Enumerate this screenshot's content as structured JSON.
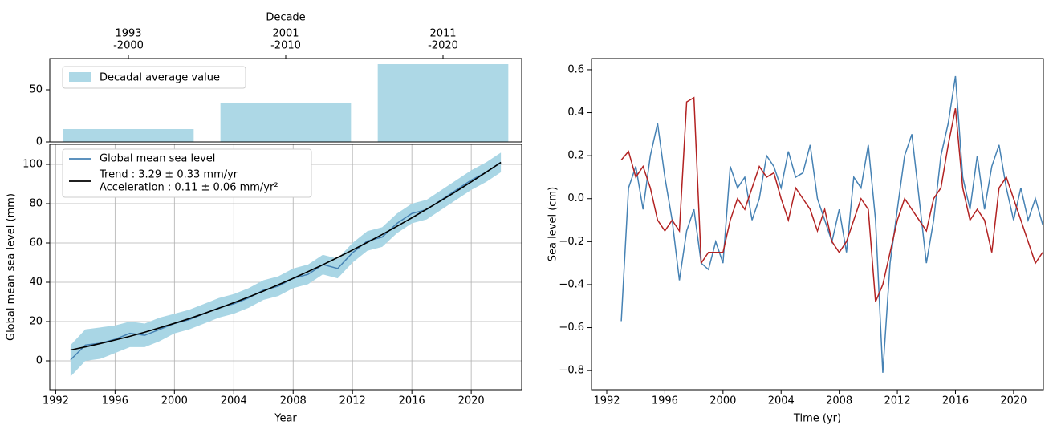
{
  "chart_data": [
    {
      "type": "bar",
      "top_axis_title": "Decade",
      "categories": [
        "1993\n-2000",
        "2001\n-2010",
        "2011\n-2020"
      ],
      "series": [
        {
          "name": "Decadal average value",
          "color": "#add8e6",
          "values": [
            12.3,
            37.7,
            74.6
          ]
        }
      ],
      "ylim": [
        0,
        80
      ],
      "yticks": [
        0,
        50
      ],
      "legend": "upper left"
    },
    {
      "type": "line",
      "xlabel": "Year",
      "ylabel": "Global mean sea level (mm)",
      "grid": true,
      "legend": "upper left",
      "xlim": [
        1991.6,
        2023.4
      ],
      "xticks": [
        1992,
        1996,
        2000,
        2004,
        2008,
        2012,
        2016,
        2020
      ],
      "ylim": [
        -14.7,
        110.2
      ],
      "yticks": [
        0,
        20,
        40,
        60,
        80,
        100
      ],
      "x": [
        1993,
        1994,
        1995,
        1996,
        1997,
        1998,
        1999,
        2000,
        2001,
        2002,
        2003,
        2004,
        2005,
        2006,
        2007,
        2008,
        2009,
        2010,
        2011,
        2012,
        2013,
        2014,
        2015,
        2016,
        2017,
        2018,
        2019,
        2020,
        2021,
        2022
      ],
      "series": [
        {
          "name": "Global mean sea level",
          "color": "#4682b4",
          "values": [
            0.5,
            8,
            9,
            11,
            14,
            13,
            16,
            19,
            21,
            24,
            27,
            29,
            32,
            36,
            38,
            42,
            44,
            49,
            47,
            55,
            61,
            63,
            70,
            75,
            77,
            82,
            87,
            92,
            96,
            101
          ],
          "band": {
            "color": "#a9d6e5",
            "lower": [
              -8,
              0,
              1,
              4,
              7,
              7,
              10,
              14,
              16,
              19,
              22,
              24,
              27,
              31,
              33,
              37,
              39,
              44,
              42,
              50,
              56,
              58,
              65,
              70,
              72,
              77,
              82,
              87,
              91,
              96
            ],
            "upper": [
              8,
              16,
              17,
              18,
              20,
              19,
              22,
              24,
              26,
              29,
              32,
              34,
              37,
              41,
              43,
              47,
              49,
              54,
              52,
              60,
              66,
              68,
              75,
              80,
              82,
              87,
              92,
              97,
              101,
              106
            ]
          }
        },
        {
          "name": "Trend : 3.29 ± 0.33 mm/yr",
          "name_line2": "Acceleration : 0.11 ± 0.06 mm/yr²",
          "color": "#000000",
          "values": [
            5.5,
            7.1,
            8.8,
            10.6,
            12.5,
            14.6,
            16.8,
            19.1,
            21.5,
            24.1,
            26.8,
            29.6,
            32.5,
            35.5,
            38.7,
            42.0,
            45.4,
            48.9,
            52.6,
            56.4,
            60.3,
            64.3,
            68.5,
            72.8,
            77.2,
            81.7,
            86.3,
            91.1,
            96.0,
            101.0
          ]
        }
      ]
    },
    {
      "type": "line",
      "xlabel": "Time (yr)",
      "ylabel": "Sea level (cm)",
      "grid": false,
      "xlim": [
        1990.95,
        2022.05
      ],
      "xticks": [
        1992,
        1996,
        2000,
        2004,
        2008,
        2012,
        2016,
        2020
      ],
      "ylim": [
        -0.889,
        0.652
      ],
      "yticks": [
        0.6,
        0.4,
        0.2,
        {
          "value": 0,
          "label": "0.0"
        },
        {
          "value": -0.2,
          "label": "−0.2"
        },
        {
          "value": -0.4,
          "label": "−0.4"
        },
        {
          "value": -0.6,
          "label": "−0.6"
        },
        {
          "value": -0.8,
          "label": "−0.8"
        }
      ],
      "x": [
        1993,
        1993.5,
        1994,
        1994.5,
        1995,
        1995.5,
        1996,
        1996.5,
        1997,
        1997.5,
        1998,
        1998.5,
        1999,
        1999.5,
        2000,
        2000.5,
        2001,
        2001.5,
        2002,
        2002.5,
        2003,
        2003.5,
        2004,
        2004.5,
        2005,
        2005.5,
        2006,
        2006.5,
        2007,
        2007.5,
        2008,
        2008.5,
        2009,
        2009.5,
        2010,
        2010.5,
        2011,
        2011.5,
        2012,
        2012.5,
        2013,
        2013.5,
        2014,
        2014.5,
        2015,
        2015.5,
        2016,
        2016.5,
        2017,
        2017.5,
        2018,
        2018.5,
        2019,
        2019.5,
        2020,
        2020.5,
        2021,
        2021.5,
        2022
      ],
      "series": [
        {
          "color": "#4682b4",
          "values": [
            -0.57,
            0.05,
            0.15,
            -0.05,
            0.2,
            0.35,
            0.1,
            -0.1,
            -0.38,
            -0.15,
            -0.05,
            -0.3,
            -0.33,
            -0.2,
            -0.3,
            0.15,
            0.05,
            0.1,
            -0.1,
            0.0,
            0.2,
            0.15,
            0.05,
            0.22,
            0.1,
            0.12,
            0.25,
            0.0,
            -0.1,
            -0.2,
            -0.05,
            -0.25,
            0.1,
            0.05,
            0.25,
            -0.1,
            -0.81,
            -0.3,
            -0.05,
            0.2,
            0.3,
            0.0,
            -0.3,
            -0.1,
            0.2,
            0.35,
            0.57,
            0.1,
            -0.05,
            0.2,
            -0.05,
            0.15,
            0.25,
            0.05,
            -0.1,
            0.05,
            -0.1,
            0.0,
            -0.12
          ]
        },
        {
          "color": "#b22222",
          "values": [
            0.18,
            0.22,
            0.1,
            0.15,
            0.05,
            -0.1,
            -0.15,
            -0.1,
            -0.15,
            0.45,
            0.47,
            -0.3,
            -0.25,
            -0.25,
            -0.25,
            -0.1,
            0.0,
            -0.05,
            0.05,
            0.15,
            0.1,
            0.12,
            0.0,
            -0.1,
            0.05,
            0.0,
            -0.05,
            -0.15,
            -0.05,
            -0.2,
            -0.25,
            -0.2,
            -0.1,
            0.0,
            -0.05,
            -0.48,
            -0.4,
            -0.25,
            -0.1,
            0.0,
            -0.05,
            -0.1,
            -0.15,
            0.0,
            0.05,
            0.25,
            0.42,
            0.05,
            -0.1,
            -0.05,
            -0.1,
            -0.25,
            0.05,
            0.1,
            0.0,
            -0.1,
            -0.2,
            -0.3,
            -0.25
          ]
        }
      ]
    }
  ]
}
